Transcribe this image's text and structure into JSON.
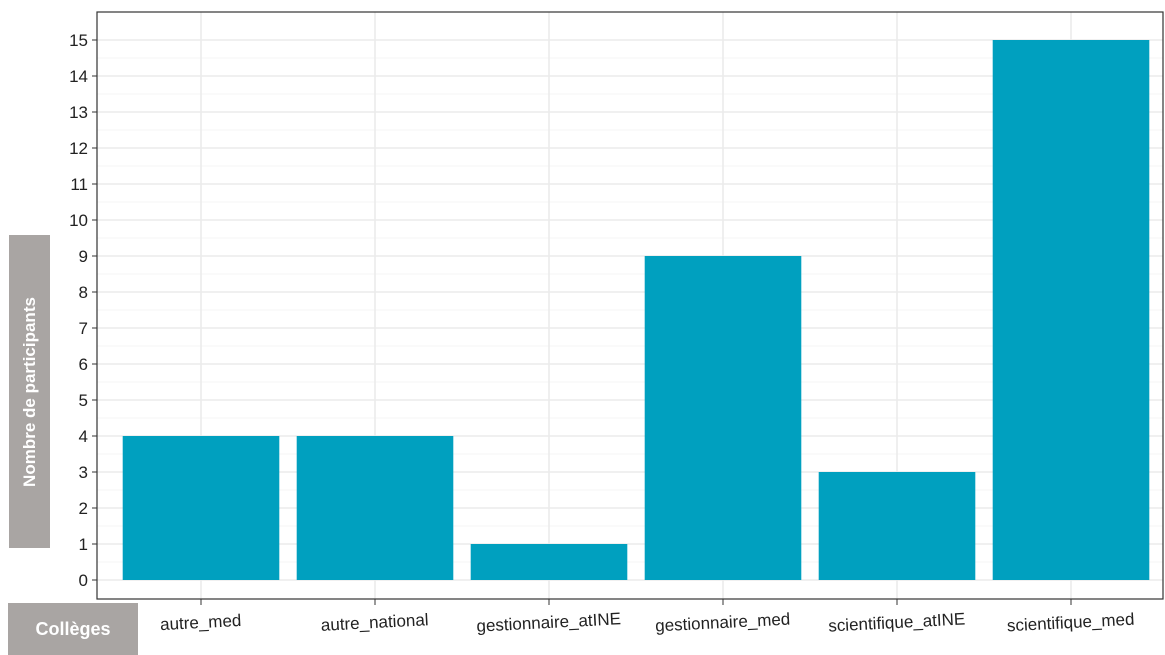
{
  "chart_data": {
    "type": "bar",
    "categories": [
      "autre_med",
      "autre_national",
      "gestionnaire_atINE",
      "gestionnaire_med",
      "scientifique_atINE",
      "scientifique_med"
    ],
    "values": [
      4,
      4,
      1,
      9,
      3,
      15
    ],
    "xlabel": "Collèges",
    "ylabel": "Nombre de participants",
    "ylim": [
      0,
      15
    ],
    "yticks": [
      0,
      1,
      2,
      3,
      4,
      5,
      6,
      7,
      8,
      9,
      10,
      11,
      12,
      13,
      14,
      15
    ],
    "grid": true,
    "bar_color": "#00a0bf"
  }
}
